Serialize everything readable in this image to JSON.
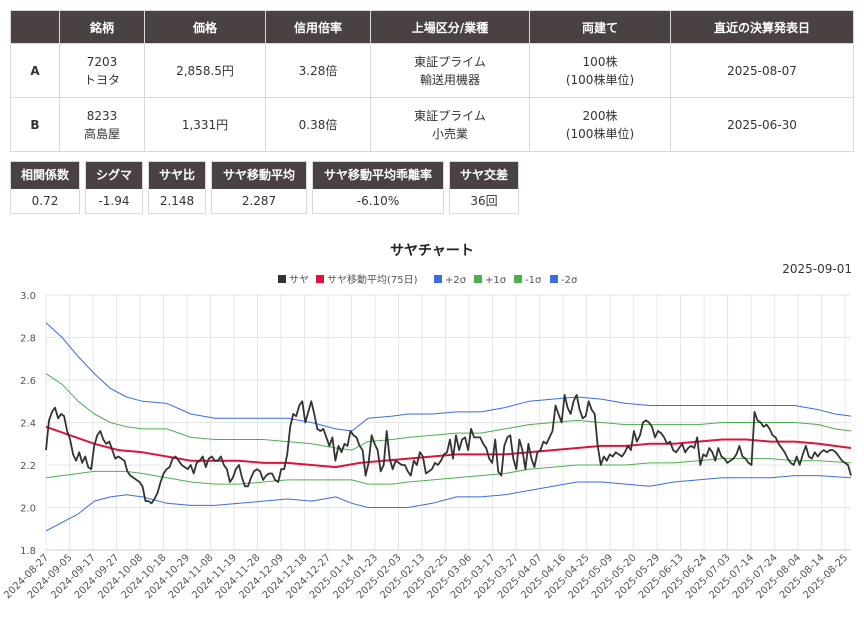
{
  "table": {
    "headers": [
      "",
      "銘柄",
      "価格",
      "信用倍率",
      "上場区分/業種",
      "両建て",
      "直近の決算発表日"
    ],
    "rows": [
      {
        "label": "A",
        "code": "7203",
        "name": "トヨタ",
        "price": "2,858.5円",
        "margin": "3.28倍",
        "market": "東証プライム",
        "sector": "輸送用機器",
        "lots": "100株",
        "unit": "(100株単位)",
        "earnings": "2025-08-07"
      },
      {
        "label": "B",
        "code": "8233",
        "name": "高島屋",
        "price": "1,331円",
        "margin": "0.38倍",
        "market": "東証プライム",
        "sector": "小売業",
        "lots": "200株",
        "unit": "(100株単位)",
        "earnings": "2025-06-30"
      }
    ]
  },
  "stats": [
    {
      "label": "相関係数",
      "value": "0.72"
    },
    {
      "label": "シグマ",
      "value": "-1.94"
    },
    {
      "label": "サヤ比",
      "value": "2.148"
    },
    {
      "label": "サヤ移動平均",
      "value": "2.287"
    },
    {
      "label": "サヤ移動平均乖離率",
      "value": "-6.10%"
    },
    {
      "label": "サヤ交差",
      "value": "36回"
    }
  ],
  "chart_data": {
    "type": "line",
    "title": "サヤチャート",
    "date_label": "2025-09-01",
    "ylim": [
      1.8,
      3.0
    ],
    "yticks": [
      "1.8",
      "2.0",
      "2.2",
      "2.4",
      "2.6",
      "2.8",
      "3.0"
    ],
    "x_tick_labels": [
      "2024-08-27",
      "2024-09-05",
      "2024-09-17",
      "2024-09-27",
      "2024-10-08",
      "2024-10-18",
      "2024-10-29",
      "2024-11-08",
      "2024-11-19",
      "2024-11-28",
      "2024-12-09",
      "2024-12-18",
      "2024-12-27",
      "2025-01-14",
      "2025-01-23",
      "2025-02-03",
      "2025-02-13",
      "2025-02-25",
      "2025-03-06",
      "2025-03-17",
      "2025-03-27",
      "2025-04-07",
      "2025-04-16",
      "2025-04-25",
      "2025-05-09",
      "2025-05-20",
      "2025-05-29",
      "2025-06-13",
      "2025-06-24",
      "2025-07-03",
      "2025-07-14",
      "2025-07-24",
      "2025-08-04",
      "2025-08-14",
      "2025-08-25"
    ],
    "grid": true,
    "legend_position": "top-center",
    "series": [
      {
        "name": "サヤ",
        "color": "#333333",
        "values": [
          2.27,
          2.41,
          2.45,
          2.47,
          2.42,
          2.44,
          2.43,
          2.36,
          2.32,
          2.25,
          2.22,
          2.26,
          2.21,
          2.24,
          2.19,
          2.18,
          2.29,
          2.34,
          2.36,
          2.32,
          2.3,
          2.31,
          2.27,
          2.23,
          2.24,
          2.23,
          2.22,
          2.17,
          2.15,
          2.14,
          2.13,
          2.12,
          2.1,
          2.03,
          2.03,
          2.02,
          2.04,
          2.07,
          2.12,
          2.16,
          2.18,
          2.19,
          2.23,
          2.24,
          2.22,
          2.2,
          2.19,
          2.18,
          2.2,
          2.16,
          2.21,
          2.22,
          2.24,
          2.19,
          2.23,
          2.24,
          2.22,
          2.22,
          2.24,
          2.2,
          2.18,
          2.12,
          2.14,
          2.18,
          2.2,
          2.14,
          2.1,
          2.1,
          2.14,
          2.17,
          2.18,
          2.17,
          2.13,
          2.15,
          2.16,
          2.16,
          2.13,
          2.12,
          2.18,
          2.18,
          2.25,
          2.38,
          2.44,
          2.43,
          2.48,
          2.5,
          2.4,
          2.45,
          2.5,
          2.44,
          2.37,
          2.36,
          2.37,
          2.33,
          2.29,
          2.33,
          2.22,
          2.29,
          2.26,
          2.3,
          2.29,
          2.36,
          2.34,
          2.33,
          2.29,
          2.27,
          2.15,
          2.21,
          2.34,
          2.3,
          2.27,
          2.17,
          2.2,
          2.36,
          2.23,
          2.18,
          2.22,
          2.21,
          2.2,
          2.2,
          2.17,
          2.15,
          2.22,
          2.2,
          2.26,
          2.24,
          2.16,
          2.17,
          2.18,
          2.21,
          2.2,
          2.22,
          2.25,
          2.26,
          2.32,
          2.23,
          2.34,
          2.27,
          2.32,
          2.33,
          2.27,
          2.37,
          2.33,
          2.33,
          2.33,
          2.3,
          2.28,
          2.23,
          2.21,
          2.32,
          2.17,
          2.15,
          2.29,
          2.33,
          2.34,
          2.23,
          2.18,
          2.32,
          2.27,
          2.18,
          2.3,
          2.23,
          2.19,
          2.26,
          2.27,
          2.31,
          2.3,
          2.33,
          2.36,
          2.48,
          2.44,
          2.4,
          2.53,
          2.47,
          2.44,
          2.5,
          2.53,
          2.46,
          2.42,
          2.43,
          2.5,
          2.46,
          2.44,
          2.29,
          2.2,
          2.24,
          2.22,
          2.25,
          2.24,
          2.26,
          2.25,
          2.24,
          2.26,
          2.29,
          2.27,
          2.36,
          2.31,
          2.34,
          2.4,
          2.41,
          2.4,
          2.38,
          2.33,
          2.36,
          2.35,
          2.33,
          2.3,
          2.31,
          2.27,
          2.26,
          2.28,
          2.3,
          2.26,
          2.28,
          2.29,
          2.28,
          2.33,
          2.2,
          2.25,
          2.24,
          2.28,
          2.26,
          2.22,
          2.28,
          2.24,
          2.23,
          2.21,
          2.22,
          2.23,
          2.25,
          2.29,
          2.24,
          2.23,
          2.21,
          2.2,
          2.45,
          2.41,
          2.4,
          2.38,
          2.39,
          2.37,
          2.34,
          2.33,
          2.3,
          2.28,
          2.26,
          2.23,
          2.21,
          2.2,
          2.24,
          2.2,
          2.25,
          2.29,
          2.24,
          2.23,
          2.26,
          2.24,
          2.26,
          2.27,
          2.26,
          2.27,
          2.27,
          2.26,
          2.24,
          2.22,
          2.21,
          2.2,
          2.15
        ]
      },
      {
        "name": "サヤ移動平均(75日)",
        "color": "#dc143c",
        "points": [
          [
            0,
            2.38
          ],
          [
            0.03,
            2.34
          ],
          [
            0.06,
            2.3
          ],
          [
            0.09,
            2.27
          ],
          [
            0.12,
            2.26
          ],
          [
            0.15,
            2.24
          ],
          [
            0.18,
            2.22
          ],
          [
            0.21,
            2.22
          ],
          [
            0.24,
            2.22
          ],
          [
            0.27,
            2.21
          ],
          [
            0.3,
            2.21
          ],
          [
            0.33,
            2.2
          ],
          [
            0.36,
            2.19
          ],
          [
            0.39,
            2.21
          ],
          [
            0.42,
            2.22
          ],
          [
            0.45,
            2.23
          ],
          [
            0.48,
            2.24
          ],
          [
            0.51,
            2.25
          ],
          [
            0.54,
            2.25
          ],
          [
            0.57,
            2.25
          ],
          [
            0.6,
            2.26
          ],
          [
            0.63,
            2.27
          ],
          [
            0.66,
            2.28
          ],
          [
            0.69,
            2.29
          ],
          [
            0.72,
            2.29
          ],
          [
            0.75,
            2.3
          ],
          [
            0.78,
            2.3
          ],
          [
            0.81,
            2.31
          ],
          [
            0.84,
            2.32
          ],
          [
            0.87,
            2.32
          ],
          [
            0.9,
            2.31
          ],
          [
            0.93,
            2.31
          ],
          [
            0.96,
            2.3
          ],
          [
            1.0,
            2.28
          ]
        ]
      },
      {
        "name": "+2σ",
        "color": "#3b6ce0",
        "points": [
          [
            0,
            2.87
          ],
          [
            0.02,
            2.8
          ],
          [
            0.04,
            2.71
          ],
          [
            0.06,
            2.63
          ],
          [
            0.08,
            2.56
          ],
          [
            0.1,
            2.52
          ],
          [
            0.12,
            2.5
          ],
          [
            0.15,
            2.49
          ],
          [
            0.18,
            2.44
          ],
          [
            0.21,
            2.42
          ],
          [
            0.24,
            2.42
          ],
          [
            0.27,
            2.42
          ],
          [
            0.3,
            2.42
          ],
          [
            0.33,
            2.4
          ],
          [
            0.36,
            2.37
          ],
          [
            0.38,
            2.36
          ],
          [
            0.4,
            2.42
          ],
          [
            0.43,
            2.43
          ],
          [
            0.45,
            2.44
          ],
          [
            0.48,
            2.44
          ],
          [
            0.51,
            2.45
          ],
          [
            0.54,
            2.45
          ],
          [
            0.57,
            2.47
          ],
          [
            0.6,
            2.5
          ],
          [
            0.63,
            2.51
          ],
          [
            0.66,
            2.52
          ],
          [
            0.69,
            2.51
          ],
          [
            0.72,
            2.49
          ],
          [
            0.75,
            2.48
          ],
          [
            0.78,
            2.48
          ],
          [
            0.81,
            2.48
          ],
          [
            0.84,
            2.48
          ],
          [
            0.87,
            2.48
          ],
          [
            0.9,
            2.48
          ],
          [
            0.93,
            2.48
          ],
          [
            0.96,
            2.46
          ],
          [
            0.98,
            2.44
          ],
          [
            1.0,
            2.43
          ]
        ]
      },
      {
        "name": "+1σ",
        "color": "#4caf50",
        "points": [
          [
            0,
            2.63
          ],
          [
            0.02,
            2.58
          ],
          [
            0.04,
            2.5
          ],
          [
            0.06,
            2.44
          ],
          [
            0.08,
            2.4
          ],
          [
            0.1,
            2.38
          ],
          [
            0.12,
            2.37
          ],
          [
            0.15,
            2.37
          ],
          [
            0.18,
            2.33
          ],
          [
            0.21,
            2.32
          ],
          [
            0.24,
            2.32
          ],
          [
            0.27,
            2.32
          ],
          [
            0.3,
            2.31
          ],
          [
            0.33,
            2.3
          ],
          [
            0.36,
            2.28
          ],
          [
            0.38,
            2.27
          ],
          [
            0.4,
            2.31
          ],
          [
            0.43,
            2.32
          ],
          [
            0.45,
            2.33
          ],
          [
            0.48,
            2.34
          ],
          [
            0.51,
            2.35
          ],
          [
            0.54,
            2.35
          ],
          [
            0.57,
            2.37
          ],
          [
            0.6,
            2.39
          ],
          [
            0.63,
            2.4
          ],
          [
            0.66,
            2.41
          ],
          [
            0.69,
            2.4
          ],
          [
            0.72,
            2.39
          ],
          [
            0.75,
            2.39
          ],
          [
            0.78,
            2.39
          ],
          [
            0.81,
            2.39
          ],
          [
            0.84,
            2.4
          ],
          [
            0.87,
            2.4
          ],
          [
            0.9,
            2.4
          ],
          [
            0.93,
            2.4
          ],
          [
            0.96,
            2.39
          ],
          [
            0.98,
            2.37
          ],
          [
            1.0,
            2.36
          ]
        ]
      },
      {
        "name": "-1σ",
        "color": "#4caf50",
        "points": [
          [
            0,
            2.14
          ],
          [
            0.02,
            2.15
          ],
          [
            0.04,
            2.16
          ],
          [
            0.06,
            2.17
          ],
          [
            0.08,
            2.17
          ],
          [
            0.1,
            2.17
          ],
          [
            0.12,
            2.16
          ],
          [
            0.15,
            2.14
          ],
          [
            0.18,
            2.12
          ],
          [
            0.21,
            2.11
          ],
          [
            0.24,
            2.11
          ],
          [
            0.27,
            2.12
          ],
          [
            0.3,
            2.13
          ],
          [
            0.33,
            2.13
          ],
          [
            0.36,
            2.13
          ],
          [
            0.38,
            2.13
          ],
          [
            0.4,
            2.11
          ],
          [
            0.43,
            2.11
          ],
          [
            0.45,
            2.12
          ],
          [
            0.48,
            2.13
          ],
          [
            0.51,
            2.14
          ],
          [
            0.54,
            2.15
          ],
          [
            0.57,
            2.16
          ],
          [
            0.6,
            2.18
          ],
          [
            0.63,
            2.19
          ],
          [
            0.66,
            2.2
          ],
          [
            0.69,
            2.2
          ],
          [
            0.72,
            2.2
          ],
          [
            0.75,
            2.21
          ],
          [
            0.78,
            2.21
          ],
          [
            0.81,
            2.22
          ],
          [
            0.84,
            2.23
          ],
          [
            0.87,
            2.23
          ],
          [
            0.9,
            2.23
          ],
          [
            0.93,
            2.22
          ],
          [
            0.96,
            2.22
          ],
          [
            1.0,
            2.21
          ]
        ]
      },
      {
        "name": "-2σ",
        "color": "#3b6ce0",
        "points": [
          [
            0,
            1.89
          ],
          [
            0.02,
            1.93
          ],
          [
            0.04,
            1.97
          ],
          [
            0.06,
            2.03
          ],
          [
            0.08,
            2.05
          ],
          [
            0.1,
            2.06
          ],
          [
            0.12,
            2.05
          ],
          [
            0.15,
            2.02
          ],
          [
            0.18,
            2.01
          ],
          [
            0.21,
            2.01
          ],
          [
            0.24,
            2.02
          ],
          [
            0.27,
            2.03
          ],
          [
            0.3,
            2.04
          ],
          [
            0.33,
            2.03
          ],
          [
            0.36,
            2.05
          ],
          [
            0.38,
            2.02
          ],
          [
            0.4,
            2.0
          ],
          [
            0.43,
            2.0
          ],
          [
            0.45,
            2.0
          ],
          [
            0.48,
            2.02
          ],
          [
            0.51,
            2.05
          ],
          [
            0.54,
            2.05
          ],
          [
            0.57,
            2.06
          ],
          [
            0.6,
            2.08
          ],
          [
            0.63,
            2.1
          ],
          [
            0.66,
            2.12
          ],
          [
            0.69,
            2.12
          ],
          [
            0.72,
            2.11
          ],
          [
            0.75,
            2.1
          ],
          [
            0.78,
            2.12
          ],
          [
            0.81,
            2.13
          ],
          [
            0.84,
            2.14
          ],
          [
            0.87,
            2.14
          ],
          [
            0.9,
            2.14
          ],
          [
            0.93,
            2.15
          ],
          [
            0.96,
            2.15
          ],
          [
            1.0,
            2.14
          ]
        ]
      }
    ]
  }
}
